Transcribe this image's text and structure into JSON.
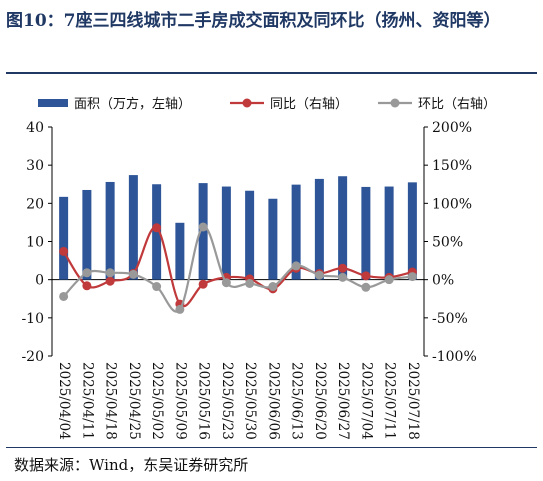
{
  "title": "图10：7座三四线城市二手房成交面积及同环比（扬州、资阳等）",
  "source": "数据来源：Wind，东吴证券研究所",
  "chart_data": {
    "type": "bar+line",
    "categories": [
      "2025/04/04",
      "2025/04/11",
      "2025/04/18",
      "2025/04/25",
      "2025/05/02",
      "2025/05/09",
      "2025/05/16",
      "2025/05/23",
      "2025/05/30",
      "2025/06/06",
      "2025/06/13",
      "2025/06/20",
      "2025/06/27",
      "2025/07/04",
      "2025/07/11",
      "2025/07/18"
    ],
    "series": [
      {
        "name": "面积（万方，左轴）",
        "type": "bar",
        "axis": "left",
        "color": "#2e5597",
        "values": [
          21.7,
          23.5,
          25.6,
          27.4,
          25.0,
          14.9,
          25.3,
          24.4,
          23.3,
          21.2,
          24.9,
          26.4,
          27.1,
          24.3,
          24.4,
          25.5
        ]
      },
      {
        "name": "同比（右轴）",
        "type": "line",
        "axis": "right",
        "color": "#c0393b",
        "values": [
          37,
          -8,
          -2,
          8,
          68,
          -32,
          -6,
          3,
          1,
          -12,
          15,
          8,
          15,
          5,
          3,
          10
        ]
      },
      {
        "name": "环比（右轴）",
        "type": "line",
        "axis": "right",
        "color": "#999999",
        "values": [
          -22,
          9,
          9,
          7,
          -9,
          -39,
          69,
          -4,
          -5,
          -9,
          18,
          6,
          3,
          -10,
          0,
          4
        ]
      }
    ],
    "yleft": {
      "min": -20,
      "max": 40,
      "ticks": [
        -20,
        -10,
        0,
        10,
        20,
        30,
        40
      ]
    },
    "yright": {
      "min": -100,
      "max": 200,
      "ticks": [
        -100,
        -50,
        0,
        50,
        100,
        150,
        200
      ],
      "tick_labels": [
        "-100%",
        "-50%",
        "0%",
        "50%",
        "100%",
        "150%",
        "200%"
      ]
    },
    "legend_position": "top"
  }
}
